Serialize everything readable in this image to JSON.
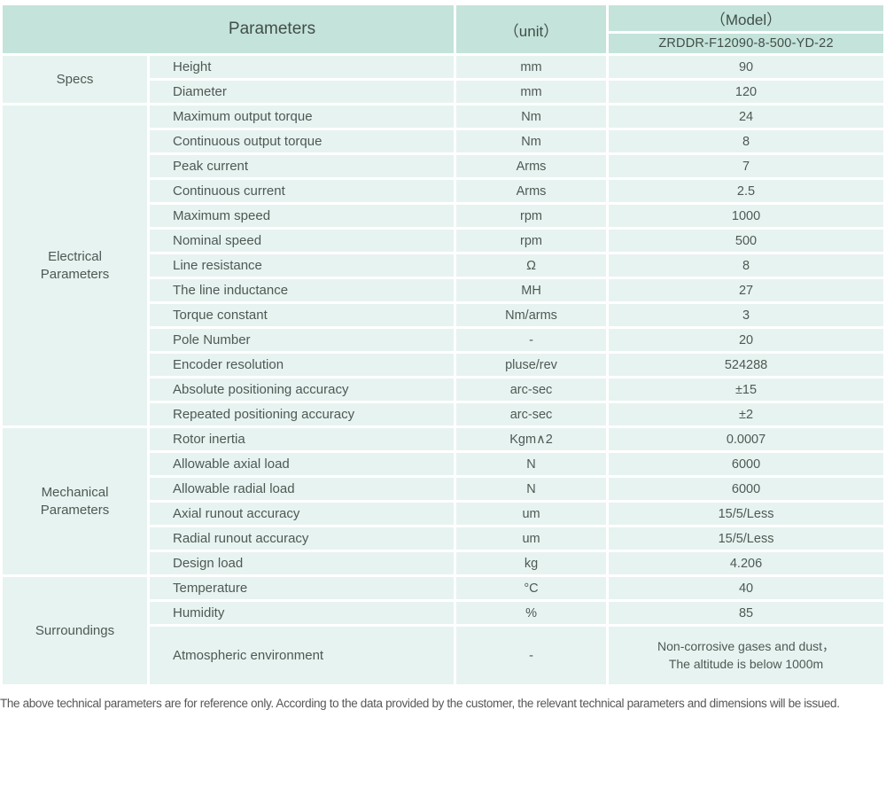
{
  "colors": {
    "header_bg": "#c4e3da",
    "row_bg": "#e7f3f0",
    "body_text": "#4e5954",
    "header_text": "#414e49",
    "footnote_text": "#575757"
  },
  "table": {
    "header": {
      "parameters_label": "Parameters",
      "unit_label": "（unit）",
      "model_label": "（Model）",
      "model_value": "ZRDDR-F12090-8-500-YD-22"
    },
    "groups": [
      {
        "name": "Specs",
        "rows": [
          {
            "param": "Height",
            "unit": "mm",
            "value": "90"
          },
          {
            "param": "Diameter",
            "unit": "mm",
            "value": "120"
          }
        ]
      },
      {
        "name": "Electrical Parameters",
        "rows": [
          {
            "param": "Maximum output torque",
            "unit": "Nm",
            "value": "24"
          },
          {
            "param": "Continuous output torque",
            "unit": "Nm",
            "value": "8"
          },
          {
            "param": "Peak current",
            "unit": "Arms",
            "value": "7"
          },
          {
            "param": "Continuous current",
            "unit": "Arms",
            "value": "2.5"
          },
          {
            "param": "Maximum speed",
            "unit": "rpm",
            "value": "1000"
          },
          {
            "param": "Nominal speed",
            "unit": "rpm",
            "value": "500"
          },
          {
            "param": "Line resistance",
            "unit": "Ω",
            "value": "8"
          },
          {
            "param": "The line inductance",
            "unit": "MH",
            "value": "27"
          },
          {
            "param": "Torque constant",
            "unit": "Nm/arms",
            "value": "3"
          },
          {
            "param": "Pole Number",
            "unit": "-",
            "value": "20"
          },
          {
            "param": "Encoder resolution",
            "unit": "pluse/rev",
            "value": "524288"
          },
          {
            "param": "Absolute positioning accuracy",
            "unit": "arc-sec",
            "value": "±15"
          },
          {
            "param": "Repeated positioning accuracy",
            "unit": "arc-sec",
            "value": "±2"
          }
        ]
      },
      {
        "name": "Mechanical Parameters",
        "rows": [
          {
            "param": "Rotor inertia",
            "unit": "Kgm∧2",
            "value": "0.0007"
          },
          {
            "param": "Allowable axial load",
            "unit": "N",
            "value": "6000"
          },
          {
            "param": "Allowable radial load",
            "unit": "N",
            "value": "6000"
          },
          {
            "param": "Axial runout accuracy",
            "unit": "um",
            "value": "15/5/Less"
          },
          {
            "param": "Radial runout accuracy",
            "unit": "um",
            "value": "15/5/Less"
          },
          {
            "param": "Design load",
            "unit": "kg",
            "value": "4.206"
          }
        ]
      },
      {
        "name": "Surroundings",
        "rows": [
          {
            "param": "Temperature",
            "unit": "°C",
            "value": "40"
          },
          {
            "param": "Humidity",
            "unit": "%",
            "value": "85"
          },
          {
            "param": "Atmospheric environment",
            "unit": "-",
            "value": [
              "Non-corrosive gases and dust，",
              "The altitude is below 1000m"
            ]
          }
        ]
      }
    ]
  },
  "footer": {
    "note": "The above technical parameters are for reference only. According to the data provided by the customer, the relevant technical parameters and dimensions will be issued."
  }
}
